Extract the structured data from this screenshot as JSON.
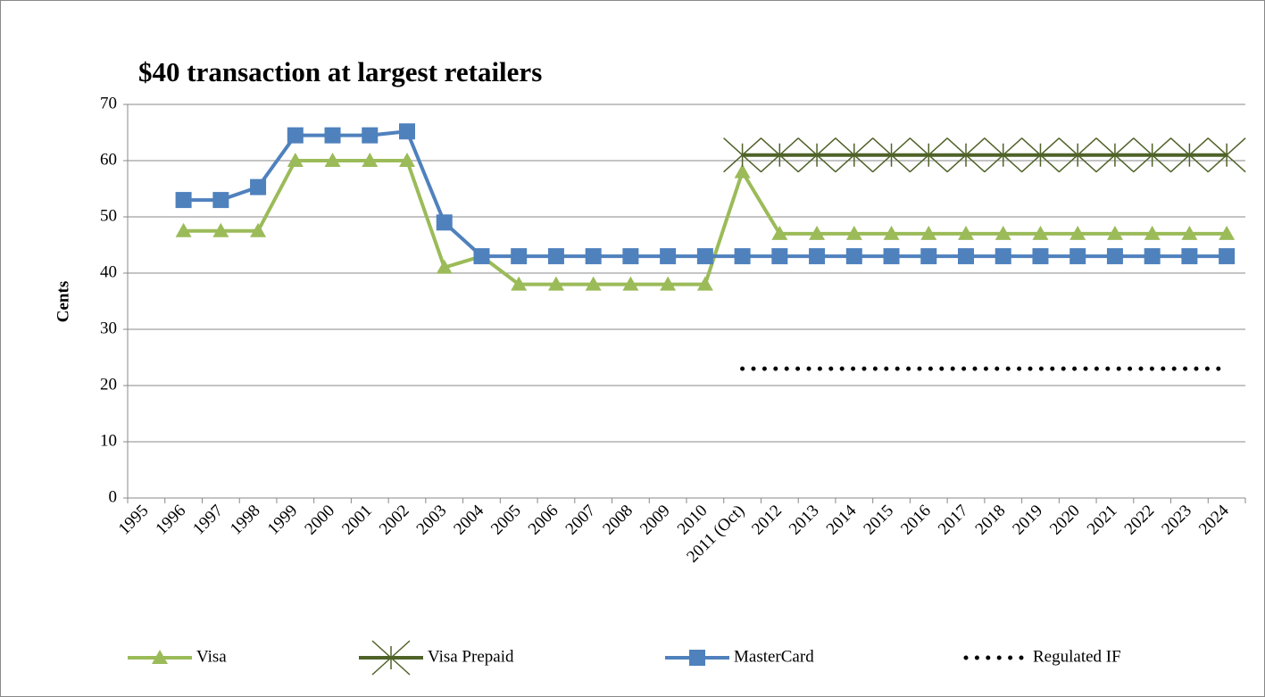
{
  "chart_data": {
    "type": "line",
    "title": "$40 transaction at largest retailers",
    "y_label": "Cents",
    "categories": [
      "1995",
      "1996",
      "1997",
      "1998",
      "1999",
      "2000",
      "2001",
      "2002",
      "2003",
      "2004",
      "2005",
      "2006",
      "2007",
      "2008",
      "2009",
      "2010",
      "2011 (Oct)",
      "2012",
      "2013",
      "2014",
      "2015",
      "2016",
      "2017",
      "2018",
      "2019",
      "2020",
      "2021",
      "2022",
      "2023",
      "2024"
    ],
    "series": [
      {
        "name": "Visa",
        "color": "#9bbb59",
        "marker": "triangle",
        "values": [
          null,
          47.5,
          47.5,
          47.5,
          60,
          60,
          60,
          60,
          41,
          43,
          38,
          38,
          38,
          38,
          38,
          38,
          58,
          47,
          47,
          47,
          47,
          47,
          47,
          47,
          47,
          47,
          47,
          47,
          47,
          47
        ]
      },
      {
        "name": "Visa Prepaid",
        "color": "#4f6228",
        "marker": "star",
        "values": [
          null,
          null,
          null,
          null,
          null,
          null,
          null,
          null,
          null,
          null,
          null,
          null,
          null,
          null,
          null,
          null,
          61,
          61,
          61,
          61,
          61,
          61,
          61,
          61,
          61,
          61,
          61,
          61,
          61,
          61
        ]
      },
      {
        "name": "MasterCard",
        "color": "#4f81bd",
        "marker": "square",
        "values": [
          null,
          53,
          53,
          55.3,
          64.5,
          64.5,
          64.5,
          65.2,
          49,
          43,
          43,
          43,
          43,
          43,
          43,
          43,
          43,
          43,
          43,
          43,
          43,
          43,
          43,
          43,
          43,
          43,
          43,
          43,
          43,
          43
        ]
      },
      {
        "name": "Regulated IF",
        "color": "#000000",
        "marker": "dotted",
        "values": [
          null,
          null,
          null,
          null,
          null,
          null,
          null,
          null,
          null,
          null,
          null,
          null,
          null,
          null,
          null,
          null,
          23,
          23,
          23,
          23,
          23,
          23,
          23,
          23,
          23,
          23,
          23,
          23,
          23,
          23
        ]
      }
    ],
    "ylim": [
      0,
      70
    ],
    "yticks": [
      0,
      10,
      20,
      30,
      40,
      50,
      60,
      70
    ],
    "grid": true,
    "legend": "bottom"
  }
}
